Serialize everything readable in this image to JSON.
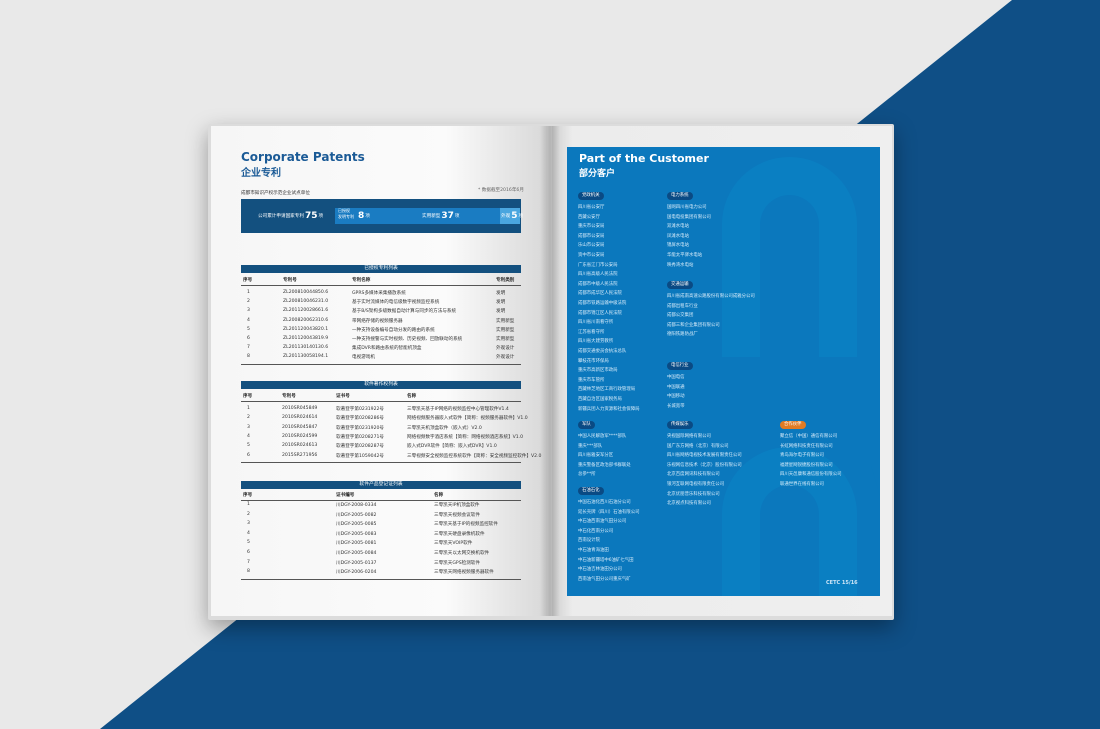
{
  "colors": {
    "brand_blue": "#0b78bd",
    "dark_blue": "#13507f",
    "partner_orange": "#e07b24",
    "background_blue": "#0f4f86"
  },
  "left": {
    "title_en": "Corporate Patents",
    "title_cn": "企业专利",
    "subtitle": "成都市知识产权示范企业试点单位",
    "note": "* 数据截至2016年6月",
    "stats": {
      "total_label": "公司累计申请国家专利",
      "total": "75",
      "unit": "项",
      "invent_label1": "已授权",
      "invent_label2": "发明专利",
      "invent": "8",
      "utility_label": "实用新型",
      "utility": "37",
      "design_label": "外观",
      "design": "5"
    },
    "table1": {
      "title": "已授权专利列表",
      "headers": [
        "序号",
        "专利号",
        "专利名称",
        "专利类别"
      ],
      "rows": [
        [
          "1",
          "ZL200810044850.6",
          "GPRS多媒体采集播放系统",
          "发明"
        ],
        [
          "2",
          "ZL200810046231.0",
          "基于实时流媒体的电信级数字视频监控系统",
          "发明"
        ],
        [
          "3",
          "ZL201120028661.6",
          "基于B/S架构多级数据自动计算与同步的方法与系统",
          "发明"
        ],
        [
          "4",
          "ZL200820062310.6",
          "带网络存储的视频服务器",
          "实用新型"
        ],
        [
          "5",
          "ZL201120043820.1",
          "一种支持设备编号自动分发的路由的系统",
          "实用新型"
        ],
        [
          "6",
          "ZL201120043819.9",
          "一种支持搜警与实时视频、历史视频、回放联动的系统",
          "实用新型"
        ],
        [
          "7",
          "ZL201130140130.6",
          "集成DVR和路由系统的智能机顶盒",
          "外观设计"
        ],
        [
          "8",
          "ZL201130058194.1",
          "电视游戏机",
          "外观设计"
        ]
      ]
    },
    "table2": {
      "title": "软件著作权列表",
      "headers": [
        "序号",
        "专利号",
        "证书号",
        "名称"
      ],
      "rows": [
        [
          "1",
          "2010SR045849",
          "软著登字第0231922号",
          "三零凯天基于IP网络的视频监控中心管理软件V1.4"
        ],
        [
          "2",
          "2010SR024614",
          "软著登字第0208286号",
          "网络视频服务器嵌入式软件【简称：视频服务器软件】V1.0"
        ],
        [
          "3",
          "2010SR045847",
          "软著登字第0231920号",
          "三零凯天机顶盒软件（嵌入式）V2.0"
        ],
        [
          "4",
          "2010SR024599",
          "软著登字第0208271号",
          "网络视频数字酒店系统【简称：网络视频酒店系统】V1.0"
        ],
        [
          "5",
          "2010SR024613",
          "软著登字第0208287号",
          "嵌入式DVR软件【简称：嵌入式DVR】V1.0"
        ],
        [
          "6",
          "2015SR271956",
          "软著登字第1059042号",
          "三零视频安全视频监控系统软件【简称：安全视频监控软件】V2.0"
        ]
      ]
    },
    "table3": {
      "title": "软件产品登记证列表",
      "headers": [
        "序号",
        "证书编号",
        "名称"
      ],
      "rows": [
        [
          "1",
          "川DGY-2008-0334",
          "三零凯天IP机顶盒软件"
        ],
        [
          "2",
          "川DGY-2005-0082",
          "三零凯天视频会议软件"
        ],
        [
          "3",
          "川DGY-2005-0085",
          "三零凯天基于IP的视频监控软件"
        ],
        [
          "4",
          "川DGY-2005-0083",
          "三零凯天硬盘录像机软件"
        ],
        [
          "5",
          "川DGY-2005-0081",
          "三零凯天VOIP软件"
        ],
        [
          "6",
          "川DGY-2005-0084",
          "三零凯天以太网交换机软件"
        ],
        [
          "7",
          "川DGY-2005-0137",
          "三零凯天GPS检测软件"
        ],
        [
          "8",
          "川DGY-2006-0204",
          "三零凯天网络视频服务器软件"
        ]
      ]
    }
  },
  "right": {
    "title_en": "Part of the Customer",
    "title_cn": "部分客户",
    "page_number": "CETC 15/16",
    "sections": [
      {
        "label": "党政机关",
        "items": [
          "四川省公安厅",
          "西藏公安厅",
          "重庆市公安局",
          "成都市公安局",
          "乐山市公安局",
          "资中市公安局",
          "广东省江门市公安局",
          "四川省高级人民法院",
          "成都市中级人民法院",
          "成都市成华区人民法院",
          "成都市铁路运输中级法院",
          "成都市锦江区人民法院",
          "四川省川南看守所",
          "江苏省看守所",
          "四川省大建劳教所",
          "成都交通委员会执法总队",
          "攀枝花市环保局",
          "重庆市高新区市政局",
          "重庆市车管所",
          "西藏林芝地区工商行政管理局",
          "西藏自治区国家税务局",
          "新疆兵团人力资源和社会保障局"
        ]
      },
      {
        "label": "电力系统",
        "items": [
          "国网四川省电力公司",
          "国电电投集团有限公司",
          "双滩水电站",
          "凤滩水电站",
          "锦屏水电站",
          "华能太平驿水电站",
          "映秀湾水电站"
        ]
      },
      {
        "label": "交通运输",
        "items": [
          "四川省成南高速公路股份有限公司成雅分公司",
          "成都出租车行业",
          "成都公交集团",
          "成都三和企业集团有限公司",
          "德阳铁路防战厂"
        ]
      },
      {
        "label": "电信行业",
        "items": [
          "中国电信",
          "中国联通",
          "中国移动",
          "长城宽带"
        ]
      },
      {
        "label": "军队",
        "items": [
          "中国人民解放军****部队",
          "重庆***部队",
          "四川省雅安军分区",
          "重庆警备区政治部书群联处",
          "总参**所"
        ]
      },
      {
        "label": "石油石化",
        "items": [
          "中国石油化西川石油分公司",
          "延长壳牌（四川）石油有限公司",
          "中石油西南油气田分公司",
          "中石化西南分公司",
          "西南设计院",
          "中石油青海油田",
          "中石油新疆塔中6油矿七气田",
          "中石油吉林油田分公司",
          "西南油气田分公司重庆气矿"
        ]
      },
      {
        "label": "传媒娱乐",
        "items": [
          "央视国际网络有限公司",
          "国广东方网络（北京）有限公司",
          "四川省网络电视技术发展有限责任公司",
          "乐视网信息技术（北京）股份有限公司",
          "北京百度网讯科技有限公司",
          "银河互联网电视有限责任公司",
          "北京优朋普乐科技有限公司",
          "北京视点科技有限公司"
        ]
      },
      {
        "label": "合作伙伴",
        "items": [
          "聚立信（中国）通信有限公司",
          "长虹网络科技责任有限公司",
          "青岛海尔电子有限公司",
          "福建星网锐捷股份有限公司",
          "四川天邑康和通信股份有限公司",
          "联通世界在线有限公司"
        ]
      }
    ]
  }
}
